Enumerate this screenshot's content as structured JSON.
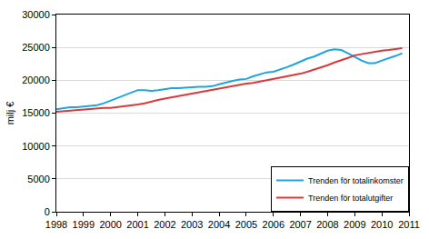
{
  "chart_data": {
    "type": "line",
    "y_label": "milj €",
    "x": [
      1998,
      1998.25,
      1998.5,
      1998.75,
      1999,
      1999.25,
      1999.5,
      1999.75,
      2000,
      2000.25,
      2000.5,
      2000.75,
      2001,
      2001.25,
      2001.5,
      2001.75,
      2002,
      2002.25,
      2002.5,
      2002.75,
      2003,
      2003.25,
      2003.5,
      2003.75,
      2004,
      2004.25,
      2004.5,
      2004.75,
      2005,
      2005.25,
      2005.5,
      2005.75,
      2006,
      2006.25,
      2006.5,
      2006.75,
      2007,
      2007.25,
      2007.5,
      2007.75,
      2008,
      2008.25,
      2008.5,
      2008.75,
      2009,
      2009.25,
      2009.5,
      2009.75,
      2010,
      2010.25,
      2010.5,
      2010.75
    ],
    "series": [
      {
        "name": "Trenden för totalinkomster",
        "color": "#1ea5e0",
        "values": [
          15600,
          15800,
          15900,
          15900,
          16000,
          16000,
          16200,
          16500,
          16900,
          17400,
          17800,
          18200,
          18500,
          18500,
          18400,
          18500,
          18700,
          18800,
          18800,
          18900,
          18900,
          19000,
          19000,
          19100,
          19400,
          19700,
          19900,
          20100,
          20200,
          20600,
          20900,
          21200,
          21300,
          21600,
          22000,
          22400,
          22900,
          23300,
          23600,
          24000,
          24500,
          24700,
          24600,
          24100,
          23500,
          23000,
          22600,
          22600,
          23000,
          23300,
          23700,
          24100
        ]
      },
      {
        "name": "Trenden för totalutgifter",
        "color": "#d83a3a",
        "values": [
          15200,
          15300,
          15400,
          15500,
          15600,
          15700,
          15700,
          15800,
          15800,
          15900,
          16000,
          16200,
          16300,
          16500,
          16800,
          17000,
          17200,
          17400,
          17600,
          17800,
          18000,
          18200,
          18400,
          18600,
          18800,
          19000,
          19100,
          19300,
          19500,
          19600,
          19800,
          19900,
          20100,
          20300,
          20500,
          20700,
          21000,
          21300,
          21600,
          21900,
          22300,
          22700,
          23000,
          23400,
          23800,
          24000,
          24200,
          24300,
          24500,
          24600,
          24700,
          24900
        ]
      }
    ],
    "xlim": [
      1998,
      2011
    ],
    "xticks": [
      1998,
      1999,
      2000,
      2001,
      2002,
      2003,
      2004,
      2005,
      2006,
      2007,
      2008,
      2009,
      2010,
      2011
    ],
    "ylim": [
      0,
      30000
    ],
    "yticks": [
      0,
      5000,
      10000,
      15000,
      20000,
      25000,
      30000
    ],
    "grid": true,
    "legend": "lower right"
  }
}
